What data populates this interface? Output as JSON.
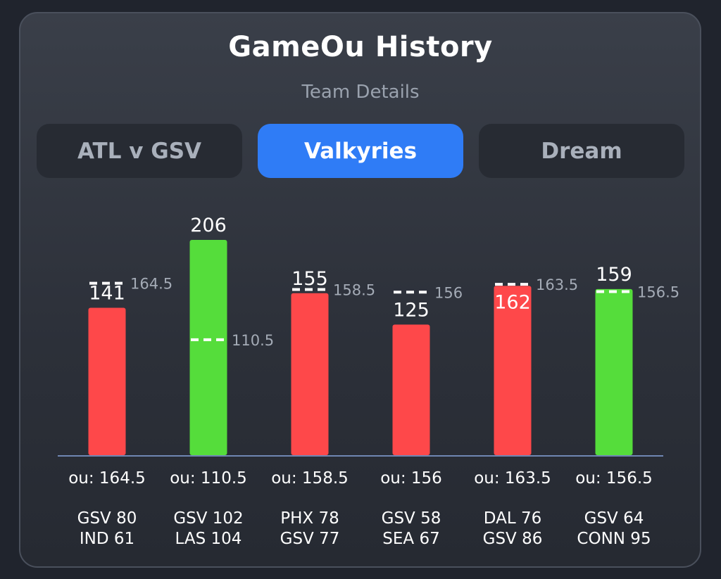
{
  "header": {
    "title": "GameOu History",
    "subtitle": "Team Details"
  },
  "tabs": [
    {
      "label": "ATL v GSV",
      "active": false
    },
    {
      "label": "Valkyries",
      "active": true
    },
    {
      "label": "Dream",
      "active": false
    }
  ],
  "colors": {
    "over": "#55dd3b",
    "under": "#fe484a",
    "accent": "#2f7cf6"
  },
  "chart_data": {
    "type": "bar",
    "categories": [
      "GSV 80 IND 61",
      "GSV 102 LAS 104",
      "PHX 78 GSV 77",
      "GSV 58 SEA 67",
      "DAL 76 GSV 86",
      "GSV 64 CONN 95"
    ],
    "values": [
      141,
      206,
      155,
      125,
      162,
      159
    ],
    "lines": [
      164.5,
      110.5,
      158.5,
      156,
      163.5,
      156.5
    ],
    "results": [
      "under",
      "over",
      "under",
      "under",
      "under",
      "over"
    ],
    "games": [
      {
        "ou_label": "ou: 164.5",
        "score_line1": "GSV 80",
        "score_line2": "IND 61"
      },
      {
        "ou_label": "ou: 110.5",
        "score_line1": "GSV 102",
        "score_line2": "LAS 104"
      },
      {
        "ou_label": "ou: 158.5",
        "score_line1": "PHX 78",
        "score_line2": "GSV 77"
      },
      {
        "ou_label": "ou: 156",
        "score_line1": "GSV 58",
        "score_line2": "SEA 67"
      },
      {
        "ou_label": "ou: 163.5",
        "score_line1": "DAL 76",
        "score_line2": "GSV 86"
      },
      {
        "ou_label": "ou: 156.5",
        "score_line1": "GSV 64",
        "score_line2": "CONN 95"
      }
    ],
    "xlabel": "",
    "ylabel": "",
    "ylim": [
      0,
      206
    ],
    "grid": false,
    "legend": "none"
  }
}
